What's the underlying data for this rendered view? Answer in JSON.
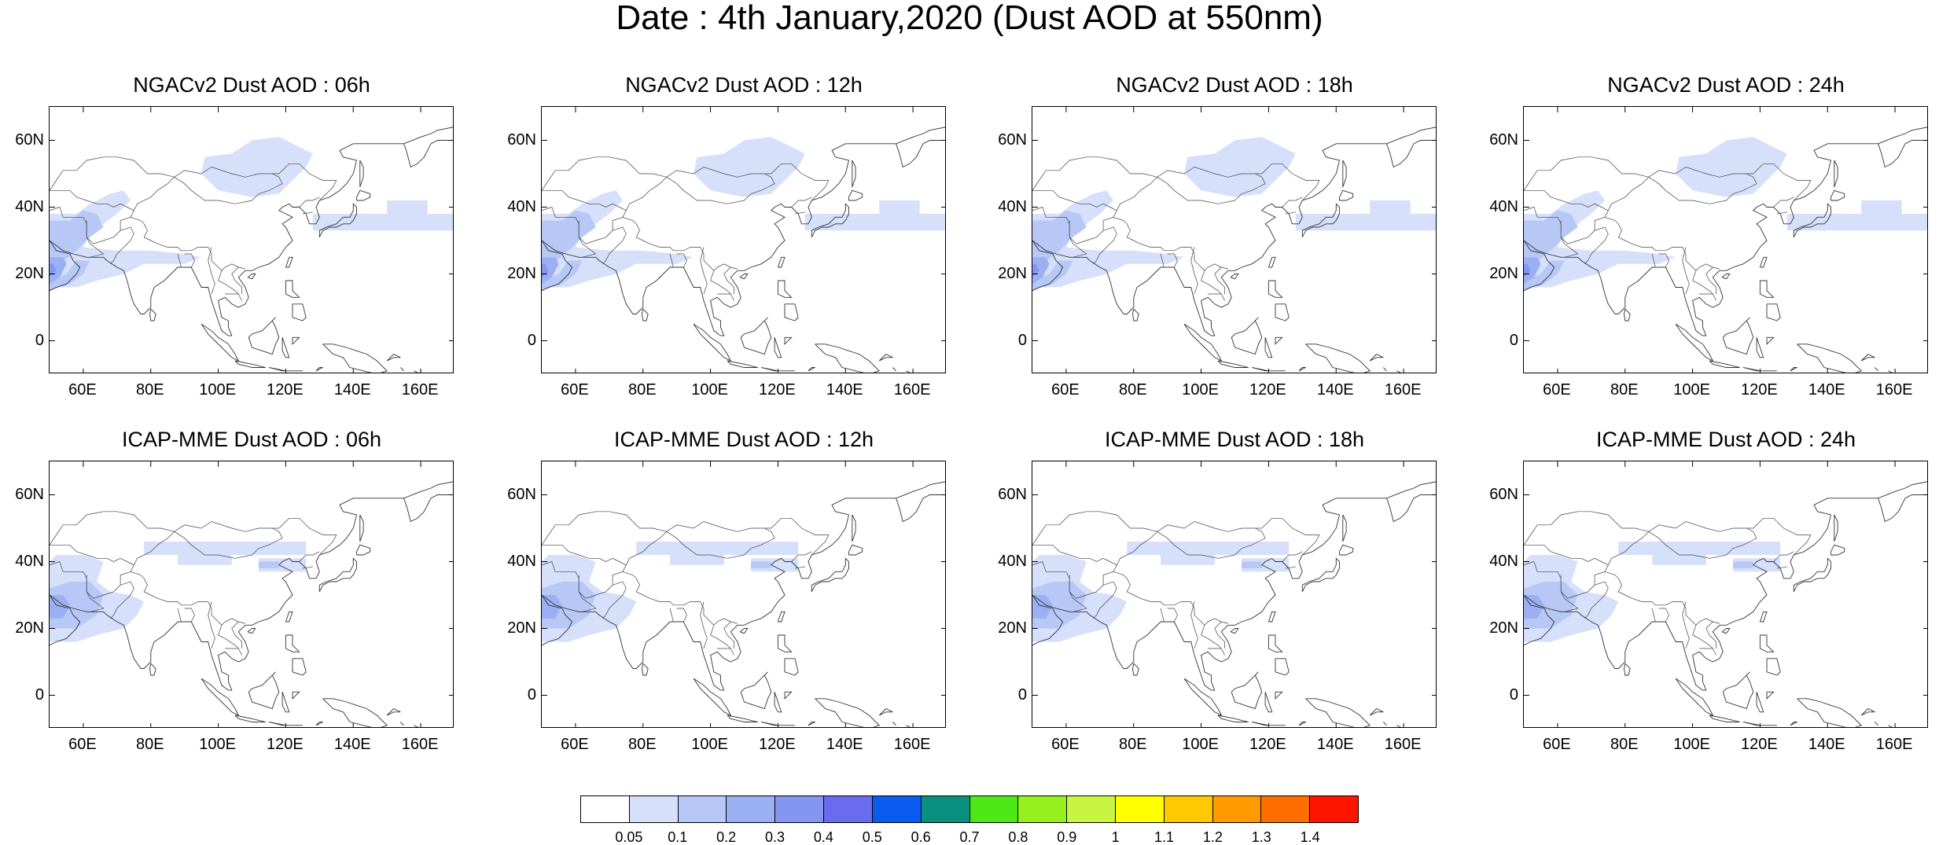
{
  "figure_title": "Date : 4th January,2020 (Dust AOD at 550nm)",
  "panels": [
    {
      "title": "NGACv2 Dust AOD : 06h",
      "model": "NGACv2",
      "hour": "06h",
      "dust_level": "higher"
    },
    {
      "title": "NGACv2 Dust AOD : 12h",
      "model": "NGACv2",
      "hour": "12h",
      "dust_level": "higher"
    },
    {
      "title": "NGACv2 Dust AOD : 18h",
      "model": "NGACv2",
      "hour": "18h",
      "dust_level": "higher"
    },
    {
      "title": "NGACv2 Dust AOD : 24h",
      "model": "NGACv2",
      "hour": "24h",
      "dust_level": "higher"
    },
    {
      "title": "ICAP-MME Dust AOD : 06h",
      "model": "ICAP-MME",
      "hour": "06h",
      "dust_level": "lower"
    },
    {
      "title": "ICAP-MME Dust AOD : 12h",
      "model": "ICAP-MME",
      "hour": "12h",
      "dust_level": "lower"
    },
    {
      "title": "ICAP-MME Dust AOD : 18h",
      "model": "ICAP-MME",
      "hour": "18h",
      "dust_level": "lower"
    },
    {
      "title": "ICAP-MME Dust AOD : 24h",
      "model": "ICAP-MME",
      "hour": "24h",
      "dust_level": "lower"
    }
  ],
  "map_extent": {
    "lon_min": 50,
    "lon_max": 170,
    "lat_min": -10,
    "lat_max": 70
  },
  "lat_ticks": [
    "60N",
    "40N",
    "20N",
    "0"
  ],
  "lon_ticks": [
    "60E",
    "80E",
    "100E",
    "120E",
    "140E",
    "160E"
  ],
  "colorbar": {
    "labels": [
      "0.05",
      "0.1",
      "0.2",
      "0.3",
      "0.4",
      "0.5",
      "0.6",
      "0.7",
      "0.8",
      "0.9",
      "1",
      "1.1",
      "1.2",
      "1.3",
      "1.4"
    ],
    "colors": [
      "#ffffff",
      "#d6e0fb",
      "#b8c8f6",
      "#9ab0f2",
      "#8496f0",
      "#6a6cef",
      "#0a5cf0",
      "#0a9080",
      "#4ee818",
      "#96f01e",
      "#c8f542",
      "#ffff00",
      "#ffc800",
      "#ff9a00",
      "#ff6e00",
      "#ff1400"
    ]
  }
}
